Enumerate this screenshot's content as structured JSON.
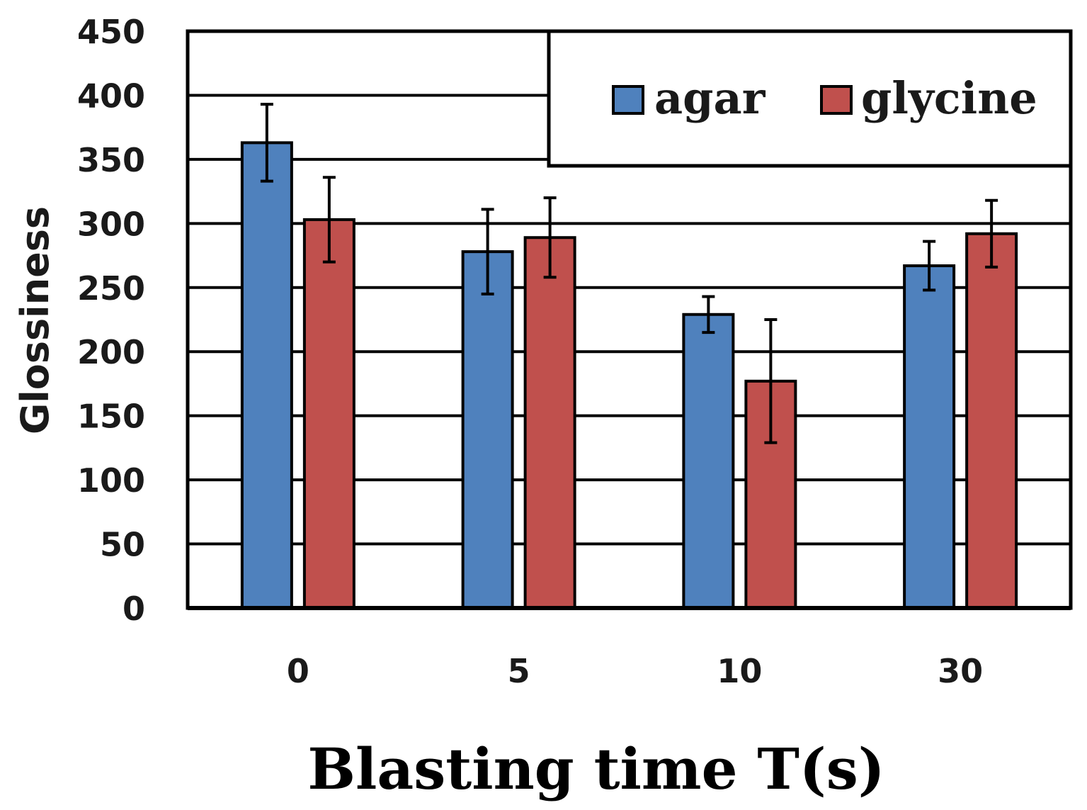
{
  "chart_data": {
    "type": "bar",
    "title": "",
    "xlabel": "Blasting time T(s)",
    "ylabel": "Glossiness",
    "categories": [
      "0",
      "5",
      "10",
      "30"
    ],
    "ylim": [
      0,
      450
    ],
    "yticks": [
      0,
      50,
      100,
      150,
      200,
      250,
      300,
      350,
      400,
      450
    ],
    "grid": true,
    "legend_position": "top-right",
    "series": [
      {
        "name": "agar",
        "color": "#4F81BD",
        "values": [
          363,
          278,
          229,
          267
        ],
        "error": [
          30,
          33,
          14,
          19
        ]
      },
      {
        "name": "glycine",
        "color": "#C0504D",
        "values": [
          303,
          289,
          177,
          292
        ],
        "error": [
          33,
          31,
          48,
          26
        ]
      }
    ]
  }
}
